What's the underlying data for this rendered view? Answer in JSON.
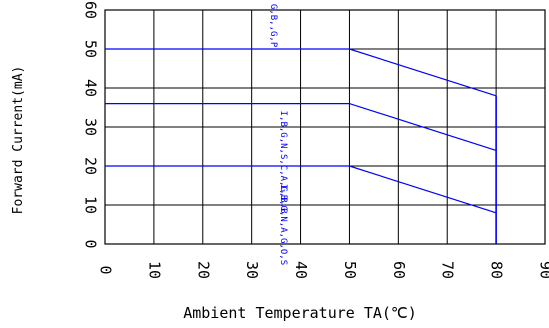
{
  "chart_data": {
    "type": "line",
    "xlabel": "Ambient Temperature TA(℃)",
    "ylabel": "Forward Current(mA)",
    "xlim": [
      0,
      90
    ],
    "ylim": [
      0,
      60
    ],
    "x_ticks": [
      "0",
      "10",
      "20",
      "30",
      "40",
      "50",
      "60",
      "70",
      "80",
      "90"
    ],
    "y_ticks": [
      "0",
      "10",
      "20",
      "30",
      "40",
      "50",
      "60"
    ],
    "grid": true,
    "line_color": "#0000ff",
    "series": [
      {
        "label": "G,B,,G,P",
        "points": [
          [
            0,
            50
          ],
          [
            50,
            50
          ],
          [
            80,
            38
          ]
        ]
      },
      {
        "label": "I,B,G,N,S,C,A,G,B,B",
        "points": [
          [
            0,
            36
          ],
          [
            50,
            36
          ],
          [
            80,
            24
          ]
        ]
      },
      {
        "label": "I,B,G,N,A,G,O,S",
        "points": [
          [
            0,
            20
          ],
          [
            50,
            20
          ],
          [
            80,
            8
          ]
        ]
      }
    ],
    "limit_line": {
      "x": 80,
      "y_range": [
        0,
        38
      ]
    }
  }
}
